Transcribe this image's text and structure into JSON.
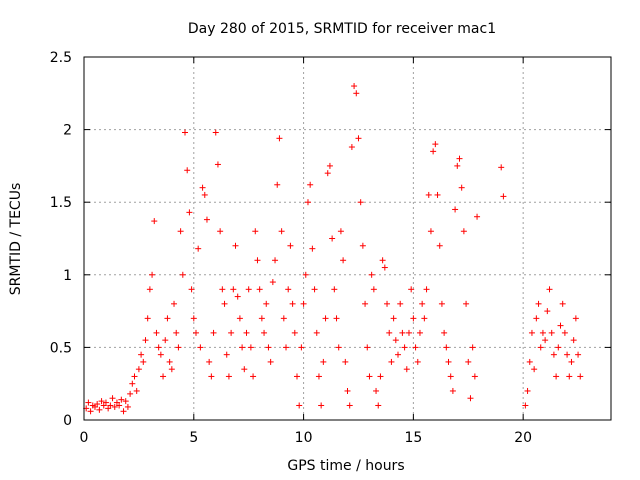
{
  "chart_data": {
    "type": "scatter",
    "title": "Day 280 of 2015, SRMTID for receiver mac1",
    "xlabel": "GPS time / hours",
    "ylabel": "SRMTID / TECUs",
    "xlim": [
      0,
      24
    ],
    "ylim": [
      0,
      2.5
    ],
    "xticks": [
      0,
      5,
      10,
      15,
      20
    ],
    "yticks": [
      0,
      0.5,
      1,
      1.5,
      2,
      2.5
    ],
    "x_tick_labels": [
      "0",
      "5",
      "10",
      "15",
      "20"
    ],
    "y_tick_labels": [
      "0",
      "0.5",
      "1",
      "1.5",
      "2",
      "2.5"
    ],
    "grid": true,
    "marker": "+",
    "color": "#ff0000",
    "series": [
      {
        "name": "SRMTID",
        "points": [
          [
            0.1,
            0.08
          ],
          [
            0.2,
            0.12
          ],
          [
            0.3,
            0.06
          ],
          [
            0.4,
            0.1
          ],
          [
            0.5,
            0.09
          ],
          [
            0.6,
            0.11
          ],
          [
            0.7,
            0.07
          ],
          [
            0.8,
            0.13
          ],
          [
            0.9,
            0.1
          ],
          [
            1.0,
            0.12
          ],
          [
            1.1,
            0.08
          ],
          [
            1.2,
            0.1
          ],
          [
            1.3,
            0.15
          ],
          [
            1.4,
            0.09
          ],
          [
            1.5,
            0.12
          ],
          [
            1.6,
            0.1
          ],
          [
            1.7,
            0.14
          ],
          [
            1.8,
            0.06
          ],
          [
            1.9,
            0.13
          ],
          [
            2.0,
            0.09
          ],
          [
            2.1,
            0.18
          ],
          [
            2.2,
            0.25
          ],
          [
            2.3,
            0.3
          ],
          [
            2.4,
            0.2
          ],
          [
            2.5,
            0.35
          ],
          [
            2.6,
            0.45
          ],
          [
            2.7,
            0.4
          ],
          [
            2.8,
            0.55
          ],
          [
            2.9,
            0.7
          ],
          [
            3.0,
            0.9
          ],
          [
            3.1,
            1.0
          ],
          [
            3.2,
            1.37
          ],
          [
            3.3,
            0.6
          ],
          [
            3.4,
            0.5
          ],
          [
            3.5,
            0.45
          ],
          [
            3.6,
            0.3
          ],
          [
            3.7,
            0.55
          ],
          [
            3.8,
            0.7
          ],
          [
            3.9,
            0.4
          ],
          [
            4.0,
            0.35
          ],
          [
            4.1,
            0.8
          ],
          [
            4.2,
            0.6
          ],
          [
            4.3,
            0.5
          ],
          [
            4.4,
            1.3
          ],
          [
            4.5,
            1.0
          ],
          [
            4.6,
            1.98
          ],
          [
            4.7,
            1.72
          ],
          [
            4.8,
            1.43
          ],
          [
            4.9,
            0.9
          ],
          [
            5.0,
            0.7
          ],
          [
            5.1,
            0.6
          ],
          [
            5.2,
            1.18
          ],
          [
            5.3,
            0.5
          ],
          [
            5.4,
            1.6
          ],
          [
            5.5,
            1.55
          ],
          [
            5.6,
            1.38
          ],
          [
            5.7,
            0.4
          ],
          [
            5.8,
            0.3
          ],
          [
            5.9,
            0.6
          ],
          [
            6.0,
            1.98
          ],
          [
            6.1,
            1.76
          ],
          [
            6.2,
            1.3
          ],
          [
            6.3,
            0.9
          ],
          [
            6.4,
            0.8
          ],
          [
            6.5,
            0.45
          ],
          [
            6.6,
            0.3
          ],
          [
            6.7,
            0.6
          ],
          [
            6.8,
            0.9
          ],
          [
            6.9,
            1.2
          ],
          [
            7.0,
            0.85
          ],
          [
            7.1,
            0.7
          ],
          [
            7.2,
            0.5
          ],
          [
            7.3,
            0.35
          ],
          [
            7.4,
            0.6
          ],
          [
            7.5,
            0.9
          ],
          [
            7.6,
            0.5
          ],
          [
            7.7,
            0.3
          ],
          [
            7.8,
            1.3
          ],
          [
            7.9,
            1.1
          ],
          [
            8.0,
            0.9
          ],
          [
            8.1,
            0.7
          ],
          [
            8.2,
            0.6
          ],
          [
            8.3,
            0.8
          ],
          [
            8.4,
            0.5
          ],
          [
            8.5,
            0.4
          ],
          [
            8.6,
            0.95
          ],
          [
            8.7,
            1.1
          ],
          [
            8.8,
            1.62
          ],
          [
            8.9,
            1.94
          ],
          [
            9.0,
            1.3
          ],
          [
            9.1,
            0.7
          ],
          [
            9.2,
            0.5
          ],
          [
            9.3,
            0.9
          ],
          [
            9.4,
            1.2
          ],
          [
            9.5,
            0.8
          ],
          [
            9.6,
            0.6
          ],
          [
            9.7,
            0.3
          ],
          [
            9.8,
            0.1
          ],
          [
            9.9,
            0.5
          ],
          [
            10.0,
            0.8
          ],
          [
            10.1,
            1.0
          ],
          [
            10.2,
            1.5
          ],
          [
            10.3,
            1.62
          ],
          [
            10.4,
            1.18
          ],
          [
            10.5,
            0.9
          ],
          [
            10.6,
            0.6
          ],
          [
            10.7,
            0.3
          ],
          [
            10.8,
            0.1
          ],
          [
            10.9,
            0.4
          ],
          [
            11.0,
            0.7
          ],
          [
            11.1,
            1.7
          ],
          [
            11.2,
            1.75
          ],
          [
            11.3,
            1.25
          ],
          [
            11.4,
            0.9
          ],
          [
            11.5,
            0.7
          ],
          [
            11.6,
            0.5
          ],
          [
            11.7,
            1.3
          ],
          [
            11.8,
            1.1
          ],
          [
            11.9,
            0.4
          ],
          [
            12.0,
            0.2
          ],
          [
            12.1,
            0.1
          ],
          [
            12.2,
            1.88
          ],
          [
            12.3,
            2.3
          ],
          [
            12.4,
            2.25
          ],
          [
            12.5,
            1.94
          ],
          [
            12.6,
            1.5
          ],
          [
            12.7,
            1.2
          ],
          [
            12.8,
            0.8
          ],
          [
            12.9,
            0.5
          ],
          [
            13.0,
            0.3
          ],
          [
            13.1,
            1.0
          ],
          [
            13.2,
            0.9
          ],
          [
            13.3,
            0.2
          ],
          [
            13.4,
            0.1
          ],
          [
            13.5,
            0.3
          ],
          [
            13.6,
            1.1
          ],
          [
            13.7,
            1.05
          ],
          [
            13.8,
            0.8
          ],
          [
            13.9,
            0.6
          ],
          [
            14.0,
            0.4
          ],
          [
            14.1,
            0.7
          ],
          [
            14.2,
            0.55
          ],
          [
            14.3,
            0.45
          ],
          [
            14.4,
            0.8
          ],
          [
            14.5,
            0.6
          ],
          [
            14.6,
            0.5
          ],
          [
            14.7,
            0.35
          ],
          [
            14.8,
            0.6
          ],
          [
            14.9,
            0.9
          ],
          [
            15.0,
            0.7
          ],
          [
            15.1,
            0.5
          ],
          [
            15.2,
            0.4
          ],
          [
            15.3,
            0.6
          ],
          [
            15.4,
            0.8
          ],
          [
            15.5,
            0.7
          ],
          [
            15.6,
            0.9
          ],
          [
            15.7,
            1.55
          ],
          [
            15.8,
            1.3
          ],
          [
            15.9,
            1.85
          ],
          [
            16.0,
            1.9
          ],
          [
            16.1,
            1.55
          ],
          [
            16.2,
            1.2
          ],
          [
            16.3,
            0.8
          ],
          [
            16.4,
            0.6
          ],
          [
            16.5,
            0.5
          ],
          [
            16.6,
            0.4
          ],
          [
            16.7,
            0.3
          ],
          [
            16.8,
            0.2
          ],
          [
            16.9,
            1.45
          ],
          [
            17.0,
            1.75
          ],
          [
            17.1,
            1.8
          ],
          [
            17.2,
            1.6
          ],
          [
            17.3,
            1.3
          ],
          [
            17.4,
            0.8
          ],
          [
            17.5,
            0.4
          ],
          [
            17.6,
            0.15
          ],
          [
            17.7,
            0.5
          ],
          [
            17.8,
            0.3
          ],
          [
            17.9,
            1.4
          ],
          [
            19.0,
            1.74
          ],
          [
            19.1,
            1.54
          ],
          [
            20.1,
            0.1
          ],
          [
            20.2,
            0.2
          ],
          [
            20.3,
            0.4
          ],
          [
            20.4,
            0.6
          ],
          [
            20.5,
            0.35
          ],
          [
            20.6,
            0.7
          ],
          [
            20.7,
            0.8
          ],
          [
            20.8,
            0.5
          ],
          [
            20.9,
            0.6
          ],
          [
            21.0,
            0.55
          ],
          [
            21.1,
            0.75
          ],
          [
            21.2,
            0.9
          ],
          [
            21.3,
            0.6
          ],
          [
            21.4,
            0.45
          ],
          [
            21.5,
            0.3
          ],
          [
            21.6,
            0.5
          ],
          [
            21.7,
            0.65
          ],
          [
            21.8,
            0.8
          ],
          [
            21.9,
            0.6
          ],
          [
            22.0,
            0.45
          ],
          [
            22.1,
            0.3
          ],
          [
            22.2,
            0.4
          ],
          [
            22.3,
            0.55
          ],
          [
            22.4,
            0.7
          ],
          [
            22.5,
            0.45
          ],
          [
            22.6,
            0.3
          ]
        ]
      }
    ]
  }
}
